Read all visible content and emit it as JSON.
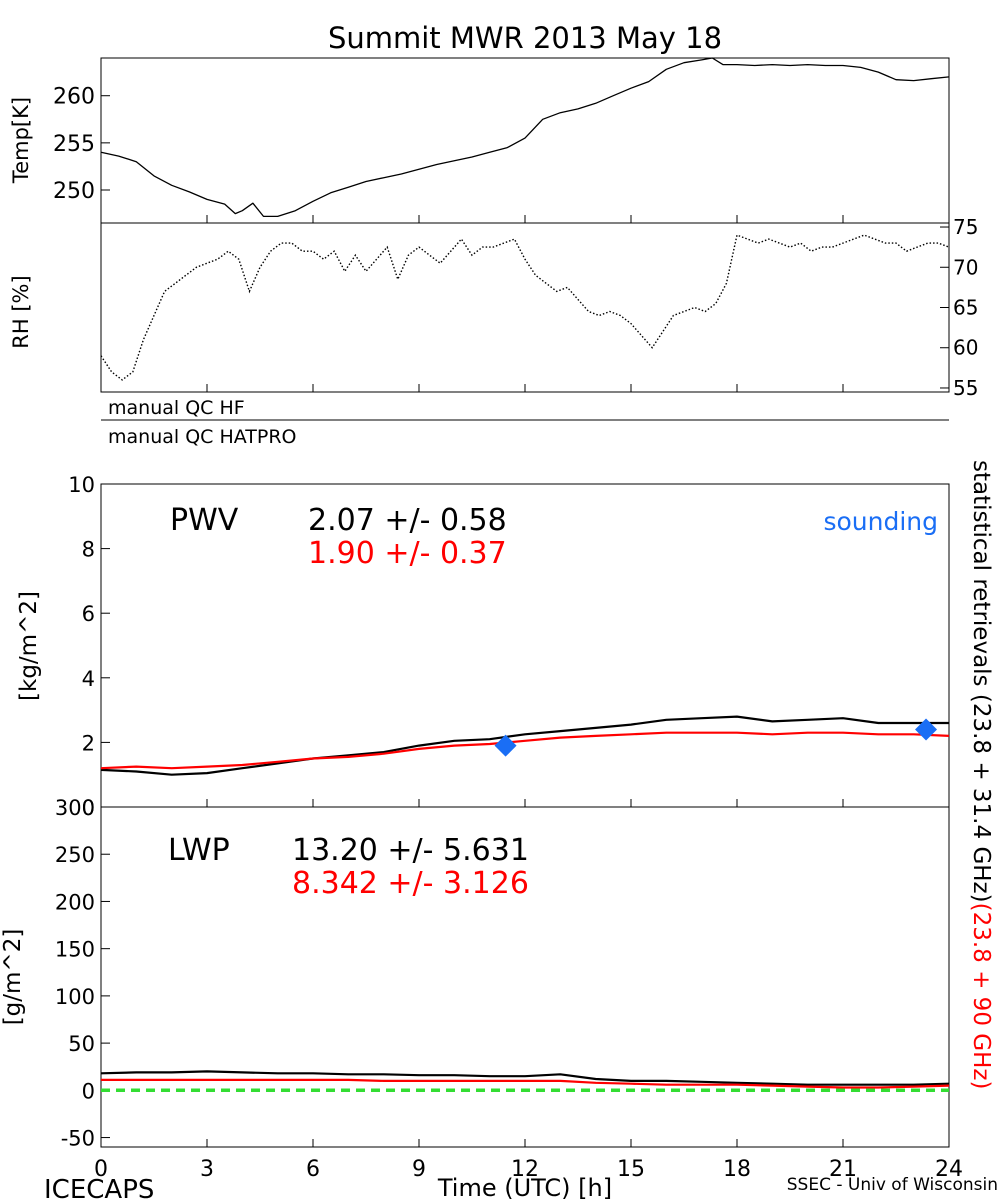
{
  "title": "Summit MWR 2013 May 18",
  "footer": {
    "left": "ICECAPS",
    "right": "SSEC - Univ of Wisconsin"
  },
  "qc_labels": [
    "manual QC HF",
    "manual QC HATPRO"
  ],
  "right_side_label": {
    "black": "statistical retrievals (23.8 + 31.4 GHz)",
    "red": "(23.8 + 90 GHz)"
  },
  "colors": {
    "black_series": "#000000",
    "red_series": "#ff0000",
    "sounding": "#1a6ef5",
    "zero_line": "#33dd33"
  },
  "chart_data": [
    {
      "id": "temp",
      "type": "line",
      "ylabel": "Temp[K]",
      "xlim": [
        0,
        24
      ],
      "ylim": [
        246.5,
        264
      ],
      "yticks": [
        250,
        255,
        260
      ],
      "grid": false,
      "series": [
        {
          "color": "#000000",
          "x": [
            0,
            0.5,
            1,
            1.5,
            2,
            2.5,
            3,
            3.5,
            3.8,
            4,
            4.3,
            4.6,
            5,
            5.5,
            6,
            6.5,
            7,
            7.5,
            8,
            8.5,
            9,
            9.5,
            10,
            10.5,
            11,
            11.5,
            12,
            12.5,
            13,
            13.5,
            14,
            14.5,
            15,
            15.5,
            16,
            16.5,
            17,
            17.3,
            17.6,
            18,
            18.5,
            19,
            19.5,
            20,
            20.5,
            21,
            21.5,
            22,
            22.5,
            23,
            23.5,
            24
          ],
          "y": [
            254,
            253.6,
            253,
            251.5,
            250.5,
            249.8,
            249,
            248.5,
            247.5,
            247.8,
            248.6,
            247.2,
            247.2,
            247.8,
            248.8,
            249.7,
            250.3,
            250.9,
            251.3,
            251.7,
            252.2,
            252.7,
            253.1,
            253.5,
            254,
            254.5,
            255.5,
            257.5,
            258.2,
            258.6,
            259.2,
            260,
            260.8,
            261.5,
            262.8,
            263.5,
            263.8,
            264,
            263.3,
            263.3,
            263.2,
            263.3,
            263.2,
            263.3,
            263.2,
            263.2,
            263,
            262.5,
            261.7,
            261.6,
            261.8,
            262
          ]
        }
      ]
    },
    {
      "id": "rh",
      "type": "scatter",
      "ylabel": "RH [%]",
      "xlim": [
        0,
        24
      ],
      "ylim": [
        54.5,
        75.5
      ],
      "yticks": [
        55,
        60,
        65,
        70,
        75
      ],
      "ytick_side": "right",
      "grid": false,
      "series": [
        {
          "color": "#000000",
          "x": [
            0,
            0.3,
            0.6,
            0.9,
            1.2,
            1.5,
            1.8,
            2.1,
            2.4,
            2.7,
            3,
            3.3,
            3.6,
            3.9,
            4.2,
            4.5,
            4.8,
            5.1,
            5.4,
            5.7,
            6,
            6.3,
            6.6,
            6.9,
            7.2,
            7.5,
            7.8,
            8.1,
            8.4,
            8.7,
            9,
            9.3,
            9.6,
            9.9,
            10.2,
            10.5,
            10.8,
            11.1,
            11.4,
            11.7,
            12,
            12.3,
            12.6,
            12.9,
            13.2,
            13.5,
            13.8,
            14.1,
            14.4,
            14.7,
            15,
            15.3,
            15.6,
            15.9,
            16.2,
            16.5,
            16.8,
            17.1,
            17.4,
            17.7,
            18,
            18.3,
            18.6,
            18.9,
            19.2,
            19.5,
            19.8,
            20.1,
            20.4,
            20.7,
            21,
            21.3,
            21.6,
            21.9,
            22.2,
            22.5,
            22.8,
            23.1,
            23.4,
            23.7,
            24
          ],
          "y": [
            59,
            57,
            56,
            57,
            61,
            64,
            67,
            68,
            69,
            70,
            70.5,
            71,
            72,
            71,
            67,
            70,
            72,
            73,
            73,
            72,
            72,
            71,
            72,
            69.5,
            71.5,
            69.5,
            71,
            72.5,
            68.5,
            71.5,
            72.5,
            71.5,
            70.5,
            72,
            73.5,
            71.5,
            72.5,
            72.5,
            73,
            73.5,
            71,
            69,
            68,
            67,
            67.5,
            66,
            64.5,
            64,
            64.5,
            64,
            63,
            61.5,
            60,
            62,
            64,
            64.5,
            65,
            64.5,
            65.5,
            68,
            74,
            73.5,
            73,
            73.5,
            73,
            72.5,
            73,
            72,
            72.5,
            72.5,
            73,
            73.5,
            74,
            73.5,
            73,
            73,
            72,
            72.5,
            73,
            73,
            72.5
          ]
        }
      ]
    },
    {
      "id": "pwv",
      "type": "line",
      "ylabel": "[kg/m^2]",
      "xlim": [
        0,
        24
      ],
      "ylim": [
        0,
        10
      ],
      "yticks": [
        0,
        2,
        4,
        6,
        8,
        10
      ],
      "grid": false,
      "annotations": [
        {
          "text": "PWV",
          "color": "#000000"
        },
        {
          "text": "2.07 +/- 0.58",
          "color": "#000000"
        },
        {
          "text": "1.90 +/- 0.37",
          "color": "#ff0000"
        },
        {
          "text": "sounding",
          "color": "#1a6ef5"
        }
      ],
      "series": [
        {
          "color": "#000000",
          "x": [
            0,
            1,
            2,
            3,
            4,
            5,
            6,
            7,
            8,
            9,
            10,
            11,
            12,
            13,
            14,
            15,
            16,
            17,
            18,
            19,
            20,
            21,
            22,
            23,
            24
          ],
          "y": [
            1.15,
            1.1,
            1.0,
            1.05,
            1.2,
            1.35,
            1.5,
            1.6,
            1.7,
            1.9,
            2.05,
            2.1,
            2.25,
            2.35,
            2.45,
            2.55,
            2.7,
            2.75,
            2.8,
            2.65,
            2.7,
            2.75,
            2.6,
            2.6,
            2.6
          ]
        },
        {
          "color": "#ff0000",
          "x": [
            0,
            1,
            2,
            3,
            4,
            5,
            6,
            7,
            8,
            9,
            10,
            11,
            12,
            13,
            14,
            15,
            16,
            17,
            18,
            19,
            20,
            21,
            22,
            23,
            24
          ],
          "y": [
            1.2,
            1.25,
            1.2,
            1.25,
            1.3,
            1.4,
            1.5,
            1.55,
            1.65,
            1.8,
            1.9,
            1.95,
            2.05,
            2.15,
            2.2,
            2.25,
            2.3,
            2.3,
            2.3,
            2.25,
            2.3,
            2.3,
            2.25,
            2.25,
            2.2
          ]
        },
        {
          "name": "sounding",
          "color": "#1a6ef5",
          "type": "scatter",
          "x": [
            11.45,
            23.35
          ],
          "y": [
            1.9,
            2.4
          ]
        }
      ]
    },
    {
      "id": "lwp",
      "type": "line",
      "ylabel": "[g/m^2]",
      "xlabel": "Time (UTC) [h]",
      "xlim": [
        0,
        24
      ],
      "xticks": [
        0,
        3,
        6,
        9,
        12,
        15,
        18,
        21,
        24
      ],
      "ylim": [
        -60,
        300
      ],
      "yticks": [
        -50,
        0,
        50,
        100,
        150,
        200,
        250,
        300
      ],
      "grid": false,
      "annotations": [
        {
          "text": "LWP",
          "color": "#000000"
        },
        {
          "text": "13.20 +/- 5.631",
          "color": "#000000"
        },
        {
          "text": "8.342 +/- 3.126",
          "color": "#ff0000"
        }
      ],
      "series": [
        {
          "color": "#000000",
          "x": [
            0,
            1,
            2,
            3,
            4,
            5,
            6,
            7,
            8,
            9,
            10,
            11,
            12,
            13,
            14,
            15,
            16,
            17,
            18,
            19,
            20,
            21,
            22,
            23,
            24
          ],
          "y": [
            18,
            19,
            19,
            20,
            19,
            18,
            18,
            17,
            17,
            16,
            16,
            15,
            15,
            17,
            12,
            10,
            10,
            9,
            8,
            7,
            6,
            6,
            6,
            6,
            7
          ]
        },
        {
          "color": "#ff0000",
          "x": [
            0,
            1,
            2,
            3,
            4,
            5,
            6,
            7,
            8,
            9,
            10,
            11,
            12,
            13,
            14,
            15,
            16,
            17,
            18,
            19,
            20,
            21,
            22,
            23,
            24
          ],
          "y": [
            11,
            11,
            11,
            11,
            11,
            11,
            11,
            11,
            10,
            10,
            10,
            10,
            10,
            10,
            8,
            7,
            6,
            6,
            6,
            5,
            4,
            3,
            3,
            4,
            5
          ]
        },
        {
          "color": "#33dd33",
          "style": "dashed",
          "x": [
            0,
            24
          ],
          "y": [
            0,
            0
          ]
        }
      ]
    }
  ]
}
